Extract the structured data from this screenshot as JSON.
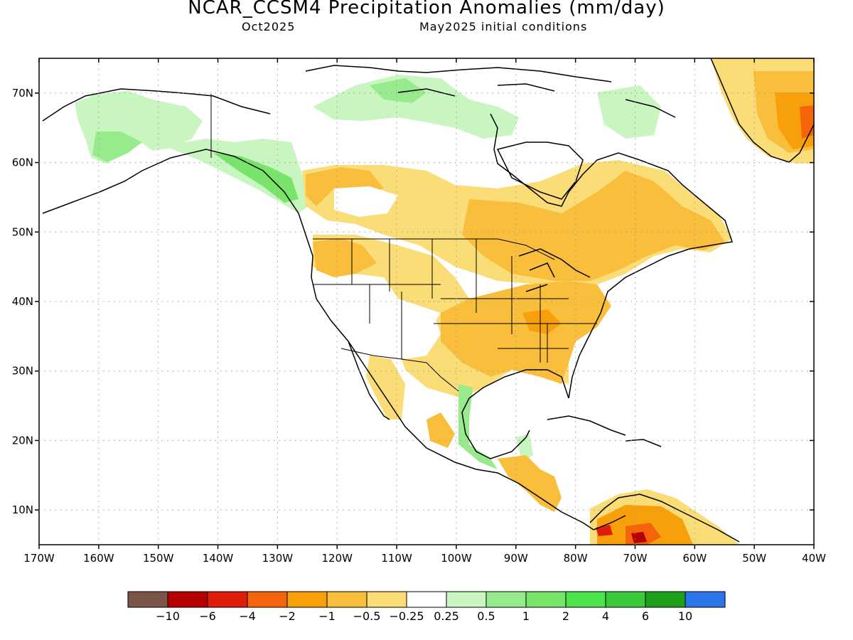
{
  "header": {
    "title": "NCAR_CCSM4 Precipitation Anomalies (mm/day)",
    "subtitle_left": "Oct2025",
    "subtitle_right": "May2025 initial conditions"
  },
  "axes": {
    "lat_labels": [
      "10N",
      "20N",
      "30N",
      "40N",
      "50N",
      "60N",
      "70N"
    ],
    "lon_labels": [
      "170W",
      "160W",
      "150W",
      "140W",
      "130W",
      "120W",
      "110W",
      "100W",
      "90W",
      "80W",
      "70W",
      "60W",
      "50W",
      "40W"
    ],
    "lat_range": [
      5,
      75
    ],
    "lon_range": [
      -170,
      -40
    ]
  },
  "colorbar": {
    "colors": [
      "#7a5548",
      "#b40000",
      "#de1e0a",
      "#f5640a",
      "#f7a00c",
      "#f9be3c",
      "#fbdd78",
      "#ffffff",
      "#c8f5c0",
      "#98eb8c",
      "#78e46a",
      "#4ce44a",
      "#3bc83b",
      "#1ea01e",
      "#2a76e8"
    ],
    "labels": [
      "−10",
      "−6",
      "−4",
      "−2",
      "−1",
      "−0.5",
      "−0.25",
      "0.25",
      "0.5",
      "1",
      "2",
      "4",
      "6",
      "10"
    ]
  },
  "chart_data": {
    "type": "heatmap",
    "title": "NCAR_CCSM4 Precipitation Anomalies (mm/day)",
    "units": "mm/day",
    "region": "North America",
    "xlim": [
      -170,
      -40
    ],
    "ylim": [
      5,
      75
    ],
    "gridlines": "dotted every 10 degrees",
    "regions": [
      {
        "area": "Alaska / Yukon",
        "anomaly": "0.25 to 1"
      },
      {
        "area": "Alaska panhandle / coastal British Columbia",
        "anomaly": "1 to 2"
      },
      {
        "area": "Canadian Arctic Archipelago",
        "anomaly": "0.25 to 1"
      },
      {
        "area": "Southern Canadian Prairies",
        "anomaly": "-0.5 to -1"
      },
      {
        "area": "Quebec / Labrador / Ontario",
        "anomaly": "-0.5 to -1"
      },
      {
        "area": "Pacific Northwest",
        "anomaly": "-0.25 to -1"
      },
      {
        "area": "US Midwest, South and Ohio Valley",
        "anomaly": "-0.5 to -2"
      },
      {
        "area": "Texas / Oklahoma",
        "anomaly": "-0.5 to -1"
      },
      {
        "area": "Southwest US / Great Basin",
        "anomaly": "-0.25 to 0.25"
      },
      {
        "area": "Northwest Mexico coast",
        "anomaly": "-0.25 to -0.5"
      },
      {
        "area": "Gulf coast of Mexico",
        "anomaly": "0.25 to 2"
      },
      {
        "area": "Central America",
        "anomaly": "-0.5 to -2"
      },
      {
        "area": "Northern South America (Colombia / Venezuela)",
        "anomaly": "-1 to -6"
      },
      {
        "area": "Greenland south and east",
        "anomaly": "-0.5 to -4"
      }
    ]
  }
}
